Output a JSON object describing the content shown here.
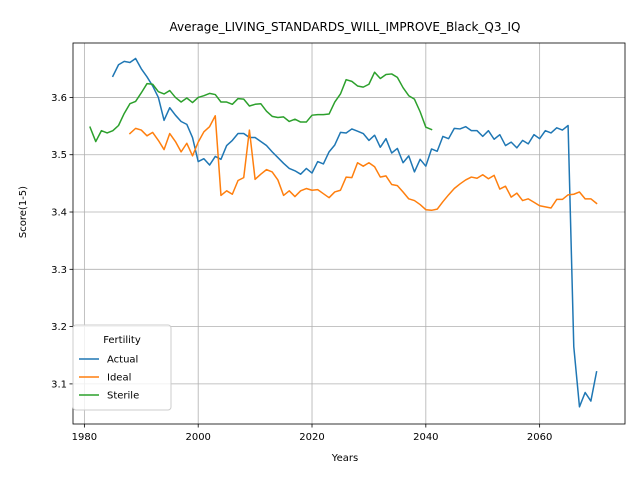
{
  "chart_data": {
    "type": "line",
    "title": "Average_LIVING_STANDARDS_WILL_IMPROVE_Black_Q3_IQ",
    "xlabel": "Years",
    "ylabel": "Score(1-5)",
    "xlim": [
      1978,
      2075
    ],
    "ylim": [
      3.03,
      3.695
    ],
    "xticks": [
      1980,
      2000,
      2020,
      2040,
      2060
    ],
    "yticks": [
      3.1,
      3.2,
      3.3,
      3.4,
      3.5,
      3.6
    ],
    "grid": true,
    "legend": {
      "title": "Fertility",
      "position": "lower-left"
    },
    "series": [
      {
        "name": "Actual",
        "color": "#1f77b4",
        "x": [
          1985,
          1986,
          1987,
          1988,
          1989,
          1990,
          1991,
          1992,
          1993,
          1994,
          1995,
          1996,
          1997,
          1998,
          1999,
          2000,
          2001,
          2002,
          2003,
          2004,
          2005,
          2006,
          2007,
          2008,
          2009,
          2010,
          2011,
          2012,
          2013,
          2014,
          2015,
          2016,
          2017,
          2018,
          2019,
          2020,
          2021,
          2022,
          2023,
          2024,
          2025,
          2026,
          2027,
          2028,
          2029,
          2030,
          2031,
          2032,
          2033,
          2034,
          2035,
          2036,
          2037,
          2038,
          2039,
          2040,
          2041,
          2042,
          2043,
          2044,
          2045,
          2046,
          2047,
          2048,
          2049,
          2050,
          2051,
          2052,
          2053,
          2054,
          2055,
          2056,
          2057,
          2058,
          2059,
          2060,
          2061,
          2062,
          2063,
          2064,
          2065,
          2066,
          2067,
          2068,
          2069,
          2070
        ],
        "y": [
          3.637,
          3.657,
          3.663,
          3.661,
          3.668,
          3.65,
          3.636,
          3.62,
          3.6,
          3.56,
          3.582,
          3.569,
          3.558,
          3.553,
          3.53,
          3.488,
          3.493,
          3.482,
          3.497,
          3.492,
          3.516,
          3.525,
          3.537,
          3.537,
          3.53,
          3.53,
          3.523,
          3.516,
          3.505,
          3.495,
          3.485,
          3.476,
          3.472,
          3.466,
          3.476,
          3.468,
          3.488,
          3.484,
          3.505,
          3.517,
          3.539,
          3.538,
          3.545,
          3.541,
          3.537,
          3.525,
          3.534,
          3.513,
          3.528,
          3.503,
          3.511,
          3.486,
          3.498,
          3.47,
          3.492,
          3.48,
          3.51,
          3.506,
          3.532,
          3.528,
          3.546,
          3.545,
          3.549,
          3.542,
          3.542,
          3.532,
          3.542,
          3.527,
          3.535,
          3.516,
          3.522,
          3.512,
          3.525,
          3.519,
          3.535,
          3.528,
          3.542,
          3.538,
          3.547,
          3.543,
          3.551,
          3.165,
          3.06,
          3.085,
          3.07,
          3.121
        ]
      },
      {
        "name": "Ideal",
        "color": "#ff7f0e",
        "x": [
          1988,
          1989,
          1990,
          1991,
          1992,
          1993,
          1994,
          1995,
          1996,
          1997,
          1998,
          1999,
          2000,
          2001,
          2002,
          2003,
          2004,
          2005,
          2006,
          2007,
          2008,
          2009,
          2010,
          2011,
          2012,
          2013,
          2014,
          2015,
          2016,
          2017,
          2018,
          2019,
          2020,
          2021,
          2022,
          2023,
          2024,
          2025,
          2026,
          2027,
          2028,
          2029,
          2030,
          2031,
          2032,
          2033,
          2034,
          2035,
          2036,
          2037,
          2038,
          2039,
          2040,
          2041,
          2042,
          2043,
          2044,
          2045,
          2046,
          2047,
          2048,
          2049,
          2050,
          2051,
          2052,
          2053,
          2054,
          2055,
          2056,
          2057,
          2058,
          2059,
          2060,
          2061,
          2062,
          2063,
          2064,
          2065,
          2066,
          2067,
          2068,
          2069,
          2070
        ],
        "y": [
          3.537,
          3.546,
          3.543,
          3.533,
          3.539,
          3.525,
          3.509,
          3.537,
          3.523,
          3.505,
          3.52,
          3.498,
          3.522,
          3.54,
          3.549,
          3.568,
          3.429,
          3.437,
          3.431,
          3.455,
          3.46,
          3.543,
          3.457,
          3.466,
          3.474,
          3.47,
          3.456,
          3.429,
          3.437,
          3.427,
          3.437,
          3.441,
          3.438,
          3.439,
          3.432,
          3.425,
          3.435,
          3.438,
          3.461,
          3.46,
          3.486,
          3.48,
          3.486,
          3.479,
          3.461,
          3.463,
          3.448,
          3.446,
          3.435,
          3.423,
          3.42,
          3.413,
          3.404,
          3.403,
          3.405,
          3.418,
          3.43,
          3.441,
          3.449,
          3.456,
          3.461,
          3.459,
          3.465,
          3.458,
          3.464,
          3.44,
          3.445,
          3.426,
          3.433,
          3.42,
          3.423,
          3.417,
          3.411,
          3.409,
          3.407,
          3.422,
          3.422,
          3.43,
          3.431,
          3.435,
          3.423,
          3.423,
          3.415
        ]
      },
      {
        "name": "Sterile",
        "color": "#2ca02c",
        "x": [
          1981,
          1982,
          1983,
          1984,
          1985,
          1986,
          1987,
          1988,
          1989,
          1990,
          1991,
          1992,
          1993,
          1994,
          1995,
          1996,
          1997,
          1998,
          1999,
          2000,
          2001,
          2002,
          2003,
          2004,
          2005,
          2006,
          2007,
          2008,
          2009,
          2010,
          2011,
          2012,
          2013,
          2014,
          2015,
          2016,
          2017,
          2018,
          2019,
          2020,
          2021,
          2022,
          2023,
          2024,
          2025,
          2026,
          2027,
          2028,
          2029,
          2030,
          2031,
          2032,
          2033,
          2034,
          2035,
          2036,
          2037,
          2038,
          2039,
          2040,
          2041
        ],
        "y": [
          3.548,
          3.523,
          3.542,
          3.538,
          3.542,
          3.551,
          3.572,
          3.589,
          3.593,
          3.608,
          3.624,
          3.623,
          3.61,
          3.606,
          3.612,
          3.6,
          3.592,
          3.599,
          3.591,
          3.6,
          3.603,
          3.607,
          3.605,
          3.592,
          3.592,
          3.588,
          3.598,
          3.597,
          3.585,
          3.588,
          3.589,
          3.576,
          3.567,
          3.565,
          3.566,
          3.558,
          3.562,
          3.557,
          3.557,
          3.569,
          3.57,
          3.57,
          3.571,
          3.592,
          3.606,
          3.631,
          3.628,
          3.62,
          3.618,
          3.623,
          3.644,
          3.633,
          3.64,
          3.641,
          3.635,
          3.617,
          3.603,
          3.597,
          3.575,
          3.548,
          3.544
        ]
      }
    ]
  }
}
